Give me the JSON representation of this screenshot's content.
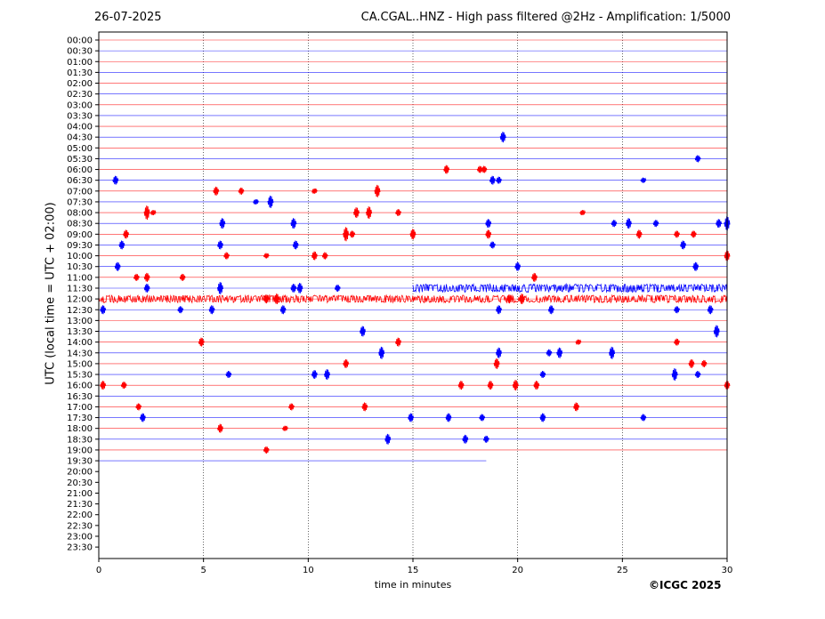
{
  "header": {
    "date": "26-07-2025",
    "title": "CA.CGAL..HNZ - High pass filtered @2Hz - Amplification: 1/5000"
  },
  "footer": {
    "copyright": "©ICGC 2025"
  },
  "chart_data": {
    "type": "line",
    "title": "CA.CGAL..HNZ - High pass filtered @2Hz - Amplification: 1/5000",
    "xlabel": "time in minutes",
    "ylabel": "UTC (local time = UTC + 02:00)",
    "xlim": [
      0,
      30
    ],
    "xticks": [
      0,
      5,
      10,
      15,
      20,
      25,
      30
    ],
    "grid": "vertical dotted lines at 5-minute ticks",
    "row_labels": [
      "00:00",
      "00:30",
      "01:00",
      "01:30",
      "02:00",
      "02:30",
      "03:00",
      "03:30",
      "04:00",
      "04:30",
      "05:00",
      "05:30",
      "06:00",
      "06:30",
      "07:00",
      "07:30",
      "08:00",
      "08:30",
      "09:00",
      "09:30",
      "10:00",
      "10:30",
      "11:00",
      "11:30",
      "12:00",
      "12:30",
      "13:00",
      "13:30",
      "14:00",
      "14:30",
      "15:00",
      "15:30",
      "16:00",
      "16:30",
      "17:00",
      "17:30",
      "18:00",
      "18:30",
      "19:00",
      "19:30",
      "20:00",
      "20:30",
      "21:00",
      "21:30",
      "22:00",
      "22:30",
      "23:00",
      "23:30"
    ],
    "trace_colors": [
      "#ff0000",
      "#0000ff"
    ],
    "last_trace": {
      "row": "19:30",
      "end_minute": 18.5
    },
    "events": [
      {
        "row": "04:30",
        "t": 19.3,
        "amp": 6
      },
      {
        "row": "05:30",
        "t": 28.6,
        "amp": 4
      },
      {
        "row": "06:00",
        "t": 16.6,
        "amp": 5
      },
      {
        "row": "06:00",
        "t": 18.2,
        "amp": 4
      },
      {
        "row": "06:00",
        "t": 18.4,
        "amp": 4
      },
      {
        "row": "06:30",
        "t": 0.8,
        "amp": 5
      },
      {
        "row": "06:30",
        "t": 18.8,
        "amp": 5
      },
      {
        "row": "06:30",
        "t": 19.1,
        "amp": 4
      },
      {
        "row": "06:30",
        "t": 26.0,
        "amp": 3
      },
      {
        "row": "07:00",
        "t": 5.6,
        "amp": 5
      },
      {
        "row": "07:00",
        "t": 6.8,
        "amp": 4
      },
      {
        "row": "07:00",
        "t": 10.3,
        "amp": 3
      },
      {
        "row": "07:00",
        "t": 13.3,
        "amp": 7
      },
      {
        "row": "07:30",
        "t": 8.2,
        "amp": 7
      },
      {
        "row": "07:30",
        "t": 7.5,
        "amp": 3
      },
      {
        "row": "08:00",
        "t": 2.3,
        "amp": 8
      },
      {
        "row": "08:00",
        "t": 2.6,
        "amp": 3
      },
      {
        "row": "08:00",
        "t": 12.3,
        "amp": 6
      },
      {
        "row": "08:00",
        "t": 12.9,
        "amp": 7
      },
      {
        "row": "08:00",
        "t": 14.3,
        "amp": 4
      },
      {
        "row": "08:00",
        "t": 23.1,
        "amp": 3
      },
      {
        "row": "08:30",
        "t": 5.9,
        "amp": 6
      },
      {
        "row": "08:30",
        "t": 9.3,
        "amp": 6
      },
      {
        "row": "08:30",
        "t": 18.6,
        "amp": 5
      },
      {
        "row": "08:30",
        "t": 24.6,
        "amp": 4
      },
      {
        "row": "08:30",
        "t": 25.3,
        "amp": 6
      },
      {
        "row": "08:30",
        "t": 26.6,
        "amp": 4
      },
      {
        "row": "08:30",
        "t": 29.6,
        "amp": 5
      },
      {
        "row": "08:30",
        "t": 30.0,
        "amp": 8
      },
      {
        "row": "09:00",
        "t": 1.3,
        "amp": 5
      },
      {
        "row": "09:00",
        "t": 11.8,
        "amp": 8
      },
      {
        "row": "09:00",
        "t": 12.1,
        "amp": 4
      },
      {
        "row": "09:00",
        "t": 15.0,
        "amp": 6
      },
      {
        "row": "09:00",
        "t": 18.6,
        "amp": 5
      },
      {
        "row": "09:00",
        "t": 25.8,
        "amp": 5
      },
      {
        "row": "09:00",
        "t": 27.6,
        "amp": 4
      },
      {
        "row": "09:00",
        "t": 28.4,
        "amp": 4
      },
      {
        "row": "09:30",
        "t": 1.1,
        "amp": 5
      },
      {
        "row": "09:30",
        "t": 5.8,
        "amp": 5
      },
      {
        "row": "09:30",
        "t": 9.4,
        "amp": 5
      },
      {
        "row": "09:30",
        "t": 18.8,
        "amp": 4
      },
      {
        "row": "09:30",
        "t": 27.9,
        "amp": 5
      },
      {
        "row": "10:00",
        "t": 6.1,
        "amp": 4
      },
      {
        "row": "10:00",
        "t": 8.0,
        "amp": 3
      },
      {
        "row": "10:00",
        "t": 10.3,
        "amp": 5
      },
      {
        "row": "10:00",
        "t": 10.8,
        "amp": 4
      },
      {
        "row": "10:00",
        "t": 30.0,
        "amp": 6
      },
      {
        "row": "10:30",
        "t": 0.9,
        "amp": 5
      },
      {
        "row": "10:30",
        "t": 20.0,
        "amp": 5
      },
      {
        "row": "10:30",
        "t": 28.5,
        "amp": 5
      },
      {
        "row": "11:00",
        "t": 1.8,
        "amp": 4
      },
      {
        "row": "11:00",
        "t": 2.3,
        "amp": 5
      },
      {
        "row": "11:00",
        "t": 4.0,
        "amp": 4
      },
      {
        "row": "11:00",
        "t": 20.8,
        "amp": 5
      },
      {
        "row": "11:30",
        "t": 5.8,
        "amp": 7
      },
      {
        "row": "11:30",
        "t": 9.3,
        "amp": 5
      },
      {
        "row": "11:30",
        "t": 9.6,
        "amp": 6
      },
      {
        "row": "11:30",
        "t": 11.4,
        "amp": 4
      },
      {
        "row": "11:30",
        "t": 2.3,
        "amp": 5
      },
      {
        "row": "12:00",
        "t": 8.5,
        "amp": 6
      },
      {
        "row": "12:00",
        "t": 8.0,
        "amp": 5
      },
      {
        "row": "12:00",
        "t": 19.6,
        "amp": 5
      },
      {
        "row": "12:00",
        "t": 20.2,
        "amp": 6
      },
      {
        "row": "12:30",
        "t": 0.2,
        "amp": 5
      },
      {
        "row": "12:30",
        "t": 3.9,
        "amp": 4
      },
      {
        "row": "12:30",
        "t": 5.4,
        "amp": 5
      },
      {
        "row": "12:30",
        "t": 8.8,
        "amp": 5
      },
      {
        "row": "12:30",
        "t": 19.1,
        "amp": 5
      },
      {
        "row": "12:30",
        "t": 21.6,
        "amp": 5
      },
      {
        "row": "12:30",
        "t": 27.6,
        "amp": 4
      },
      {
        "row": "12:30",
        "t": 29.2,
        "amp": 5
      },
      {
        "row": "13:30",
        "t": 12.6,
        "amp": 6
      },
      {
        "row": "13:30",
        "t": 29.5,
        "amp": 7
      },
      {
        "row": "14:00",
        "t": 4.9,
        "amp": 5
      },
      {
        "row": "14:00",
        "t": 14.3,
        "amp": 5
      },
      {
        "row": "14:00",
        "t": 27.6,
        "amp": 4
      },
      {
        "row": "14:00",
        "t": 22.9,
        "amp": 3
      },
      {
        "row": "14:30",
        "t": 13.5,
        "amp": 7
      },
      {
        "row": "14:30",
        "t": 19.1,
        "amp": 6
      },
      {
        "row": "14:30",
        "t": 22.0,
        "amp": 6
      },
      {
        "row": "14:30",
        "t": 24.5,
        "amp": 7
      },
      {
        "row": "14:30",
        "t": 21.5,
        "amp": 4
      },
      {
        "row": "15:00",
        "t": 11.8,
        "amp": 5
      },
      {
        "row": "15:00",
        "t": 19.0,
        "amp": 6
      },
      {
        "row": "15:00",
        "t": 28.3,
        "amp": 5
      },
      {
        "row": "15:00",
        "t": 28.9,
        "amp": 4
      },
      {
        "row": "15:30",
        "t": 6.2,
        "amp": 4
      },
      {
        "row": "15:30",
        "t": 10.3,
        "amp": 5
      },
      {
        "row": "15:30",
        "t": 10.9,
        "amp": 6
      },
      {
        "row": "15:30",
        "t": 21.2,
        "amp": 4
      },
      {
        "row": "15:30",
        "t": 27.5,
        "amp": 7
      },
      {
        "row": "15:30",
        "t": 28.6,
        "amp": 4
      },
      {
        "row": "16:00",
        "t": 0.2,
        "amp": 5
      },
      {
        "row": "16:00",
        "t": 1.2,
        "amp": 4
      },
      {
        "row": "16:00",
        "t": 17.3,
        "amp": 5
      },
      {
        "row": "16:00",
        "t": 18.7,
        "amp": 5
      },
      {
        "row": "16:00",
        "t": 19.9,
        "amp": 6
      },
      {
        "row": "16:00",
        "t": 20.9,
        "amp": 5
      },
      {
        "row": "16:00",
        "t": 30.0,
        "amp": 5
      },
      {
        "row": "17:00",
        "t": 1.9,
        "amp": 4
      },
      {
        "row": "17:00",
        "t": 9.2,
        "amp": 4
      },
      {
        "row": "17:00",
        "t": 12.7,
        "amp": 5
      },
      {
        "row": "17:00",
        "t": 22.8,
        "amp": 5
      },
      {
        "row": "17:30",
        "t": 2.1,
        "amp": 5
      },
      {
        "row": "17:30",
        "t": 14.9,
        "amp": 5
      },
      {
        "row": "17:30",
        "t": 16.7,
        "amp": 5
      },
      {
        "row": "17:30",
        "t": 18.3,
        "amp": 4
      },
      {
        "row": "17:30",
        "t": 21.2,
        "amp": 5
      },
      {
        "row": "17:30",
        "t": 26.0,
        "amp": 4
      },
      {
        "row": "18:00",
        "t": 5.8,
        "amp": 5
      },
      {
        "row": "18:00",
        "t": 8.9,
        "amp": 3
      },
      {
        "row": "18:30",
        "t": 13.8,
        "amp": 6
      },
      {
        "row": "18:30",
        "t": 17.5,
        "amp": 5
      },
      {
        "row": "18:30",
        "t": 18.5,
        "amp": 4
      },
      {
        "row": "19:00",
        "t": 8.0,
        "amp": 4
      }
    ],
    "noisy_segments": [
      {
        "row": "11:30",
        "from": 15.0,
        "to": 30.0,
        "amp": 3.5
      },
      {
        "row": "12:00",
        "from": 0.0,
        "to": 30.0,
        "amp": 3.2
      }
    ]
  }
}
